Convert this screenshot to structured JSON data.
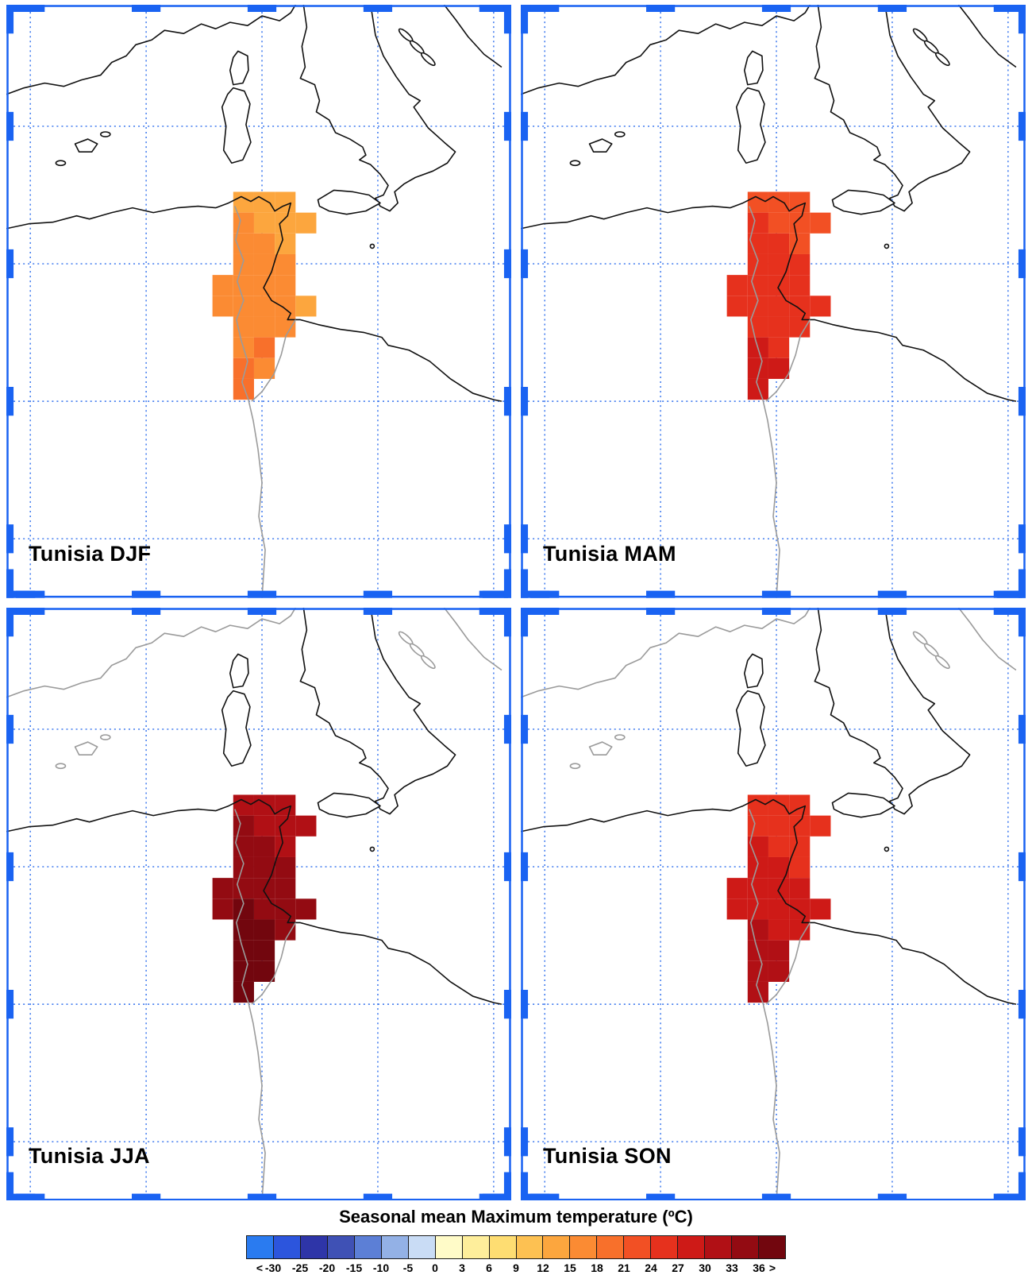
{
  "panels": [
    {
      "id": "djf",
      "label": "Tunisia DJF",
      "gray_europe": false,
      "cells": [
        [
          2,
          0,
          12
        ],
        [
          3,
          0,
          12
        ],
        [
          4,
          0,
          12
        ],
        [
          2,
          1,
          13
        ],
        [
          3,
          1,
          12
        ],
        [
          4,
          1,
          12
        ],
        [
          5,
          1,
          12
        ],
        [
          2,
          2,
          13
        ],
        [
          3,
          2,
          13
        ],
        [
          4,
          2,
          12
        ],
        [
          2,
          3,
          13
        ],
        [
          3,
          3,
          13
        ],
        [
          4,
          3,
          13
        ],
        [
          1,
          4,
          13
        ],
        [
          2,
          4,
          13
        ],
        [
          3,
          4,
          13
        ],
        [
          4,
          4,
          13
        ],
        [
          1,
          5,
          13
        ],
        [
          2,
          5,
          13
        ],
        [
          3,
          5,
          13
        ],
        [
          4,
          5,
          13
        ],
        [
          5,
          5,
          12
        ],
        [
          2,
          6,
          13
        ],
        [
          3,
          6,
          13
        ],
        [
          4,
          6,
          13
        ],
        [
          2,
          7,
          13
        ],
        [
          3,
          7,
          14
        ],
        [
          2,
          8,
          14
        ],
        [
          3,
          8,
          13
        ],
        [
          2,
          9,
          14
        ]
      ]
    },
    {
      "id": "mam",
      "label": "Tunisia MAM",
      "gray_europe": false,
      "cells": [
        [
          2,
          0,
          15
        ],
        [
          3,
          0,
          15
        ],
        [
          4,
          0,
          15
        ],
        [
          2,
          1,
          16
        ],
        [
          3,
          1,
          15
        ],
        [
          4,
          1,
          15
        ],
        [
          5,
          1,
          15
        ],
        [
          2,
          2,
          16
        ],
        [
          3,
          2,
          16
        ],
        [
          4,
          2,
          15
        ],
        [
          2,
          3,
          16
        ],
        [
          3,
          3,
          16
        ],
        [
          4,
          3,
          16
        ],
        [
          1,
          4,
          16
        ],
        [
          2,
          4,
          16
        ],
        [
          3,
          4,
          16
        ],
        [
          4,
          4,
          16
        ],
        [
          1,
          5,
          16
        ],
        [
          2,
          5,
          16
        ],
        [
          3,
          5,
          16
        ],
        [
          4,
          5,
          16
        ],
        [
          5,
          5,
          16
        ],
        [
          2,
          6,
          16
        ],
        [
          3,
          6,
          16
        ],
        [
          4,
          6,
          16
        ],
        [
          2,
          7,
          17
        ],
        [
          3,
          7,
          16
        ],
        [
          2,
          8,
          17
        ],
        [
          3,
          8,
          17
        ],
        [
          2,
          9,
          17
        ]
      ]
    },
    {
      "id": "jja",
      "label": "Tunisia JJA",
      "gray_europe": true,
      "cells": [
        [
          2,
          0,
          18
        ],
        [
          3,
          0,
          18
        ],
        [
          4,
          0,
          18
        ],
        [
          2,
          1,
          19
        ],
        [
          3,
          1,
          18
        ],
        [
          4,
          1,
          18
        ],
        [
          5,
          1,
          18
        ],
        [
          2,
          2,
          19
        ],
        [
          3,
          2,
          19
        ],
        [
          4,
          2,
          18
        ],
        [
          2,
          3,
          19
        ],
        [
          3,
          3,
          19
        ],
        [
          4,
          3,
          19
        ],
        [
          1,
          4,
          19
        ],
        [
          2,
          4,
          19
        ],
        [
          3,
          4,
          19
        ],
        [
          4,
          4,
          19
        ],
        [
          1,
          5,
          19
        ],
        [
          2,
          5,
          20
        ],
        [
          3,
          5,
          19
        ],
        [
          4,
          5,
          19
        ],
        [
          5,
          5,
          19
        ],
        [
          2,
          6,
          20
        ],
        [
          3,
          6,
          20
        ],
        [
          4,
          6,
          19
        ],
        [
          2,
          7,
          20
        ],
        [
          3,
          7,
          20
        ],
        [
          2,
          8,
          20
        ],
        [
          3,
          8,
          20
        ],
        [
          2,
          9,
          20
        ]
      ]
    },
    {
      "id": "son",
      "label": "Tunisia SON",
      "gray_europe": true,
      "cells": [
        [
          2,
          0,
          16
        ],
        [
          3,
          0,
          16
        ],
        [
          4,
          0,
          16
        ],
        [
          2,
          1,
          16
        ],
        [
          3,
          1,
          16
        ],
        [
          4,
          1,
          16
        ],
        [
          5,
          1,
          16
        ],
        [
          2,
          2,
          17
        ],
        [
          3,
          2,
          16
        ],
        [
          4,
          2,
          16
        ],
        [
          2,
          3,
          17
        ],
        [
          3,
          3,
          17
        ],
        [
          4,
          3,
          16
        ],
        [
          1,
          4,
          17
        ],
        [
          2,
          4,
          17
        ],
        [
          3,
          4,
          17
        ],
        [
          4,
          4,
          17
        ],
        [
          1,
          5,
          17
        ],
        [
          2,
          5,
          17
        ],
        [
          3,
          5,
          17
        ],
        [
          4,
          5,
          17
        ],
        [
          5,
          5,
          17
        ],
        [
          2,
          6,
          18
        ],
        [
          3,
          6,
          17
        ],
        [
          4,
          6,
          17
        ],
        [
          2,
          7,
          18
        ],
        [
          3,
          7,
          18
        ],
        [
          2,
          8,
          18
        ],
        [
          3,
          8,
          18
        ],
        [
          2,
          9,
          18
        ]
      ]
    }
  ],
  "legend": {
    "title": "Seasonal mean Maximum temperature (ºC)",
    "tick_labels": [
      "<",
      "-30",
      "-25",
      "-20",
      "-15",
      "-10",
      "-5",
      "0",
      "3",
      "6",
      "9",
      "12",
      "15",
      "18",
      "21",
      "24",
      "27",
      "30",
      "33",
      "36",
      ">"
    ],
    "colors": [
      "#2A7BF0",
      "#2C55DD",
      "#2E35A8",
      "#3F51B5",
      "#5C7FD6",
      "#93B1E6",
      "#C9DCF5",
      "#FFFBC8",
      "#FEEE9B",
      "#FEDD72",
      "#FDC152",
      "#FCA63E",
      "#FB8B33",
      "#F8702B",
      "#F25024",
      "#E6311D",
      "#CE1A17",
      "#B11015",
      "#930B12",
      "#72060E"
    ]
  },
  "colors": {
    "frame_blue": "#1A63F2",
    "grid_blue": "#2F6FED",
    "coast_black": "#111111",
    "border_gray": "#9B9B9B"
  },
  "chart_data": {
    "type": "heatmap",
    "title": "Seasonal mean Maximum temperature (ºC)",
    "region": "Tunisia",
    "seasons": [
      "DJF",
      "MAM",
      "JJA",
      "SON"
    ],
    "colorbar_bounds": [
      -30,
      -25,
      -20,
      -15,
      -10,
      -5,
      0,
      3,
      6,
      9,
      12,
      15,
      18,
      21,
      24,
      27,
      30,
      33,
      36
    ],
    "approx_range_by_season": {
      "DJF": [
        12,
        21
      ],
      "MAM": [
        21,
        30
      ],
      "JJA": [
        30,
        38
      ],
      "SON": [
        24,
        33
      ]
    },
    "legend_position": "bottom"
  }
}
